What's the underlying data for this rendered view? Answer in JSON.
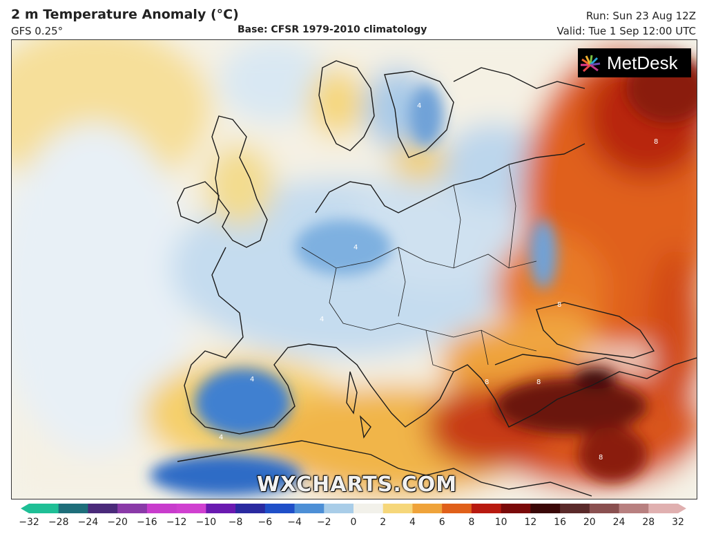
{
  "header": {
    "title": "2 m Temperature Anomaly (°C)",
    "model": "GFS 0.25°",
    "base": "Base: CFSR 1979-2010 climatology",
    "run": "Run: Sun 23 Aug 12Z",
    "valid": "Valid: Tue 1 Sep 12:00 UTC"
  },
  "map": {
    "brand": "MetDesk",
    "watermark": "WXCHARTS.COM",
    "contour_label": "4",
    "contour_label_warm": "8"
  },
  "legend": {
    "ticks": [
      "−32",
      "−28",
      "−24",
      "−20",
      "−16",
      "−12",
      "−10",
      "−8",
      "−6",
      "−4",
      "−2",
      "0",
      "2",
      "4",
      "6",
      "8",
      "10",
      "12",
      "16",
      "20",
      "24",
      "28",
      "32"
    ],
    "colors": [
      "#1fbf96",
      "#1e6e7a",
      "#4a2a7a",
      "#8a3aa8",
      "#c83ccc",
      "#d040d0",
      "#6a1ab0",
      "#2a2aa0",
      "#1f4fc8",
      "#4d8fd6",
      "#a9cde8",
      "#f2f1ea",
      "#f6d77a",
      "#efa33a",
      "#e0601a",
      "#b81a10",
      "#7a0a0a",
      "#3a0808",
      "#5a2a2a",
      "#8a5050",
      "#b88080",
      "#e0b0b0"
    ]
  }
}
